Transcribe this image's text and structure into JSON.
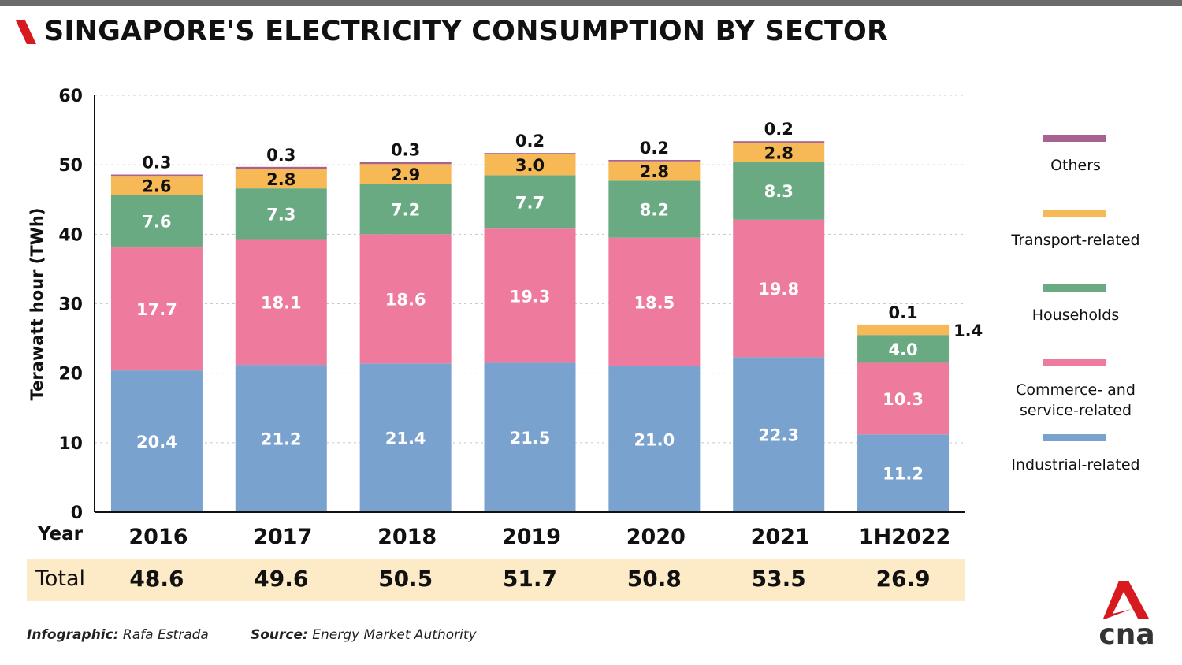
{
  "title": "SINGAPORE'S ELECTRICITY CONSUMPTION BY SECTOR",
  "colors": {
    "Industrial-related": "#7aa2cf",
    "Commerce- and service-related": "#ee7b9e",
    "Households": "#6aaa82",
    "Transport-related": "#f7b955",
    "Others": "#a8628f",
    "accent": "#d71920",
    "total_band": "#fdebc8"
  },
  "chart_data": {
    "type": "bar",
    "stacked": true,
    "ylabel": "Terawatt hour (TWh)",
    "xlabel": "Year",
    "ylim": [
      0,
      60
    ],
    "yticks": [
      "0",
      "10",
      "20",
      "30",
      "40",
      "50",
      "60"
    ],
    "grid": true,
    "legend_placement": "right",
    "categories": [
      "2016",
      "2017",
      "2018",
      "2019",
      "2020",
      "2021",
      "1H2022"
    ],
    "series": [
      {
        "name": "Industrial-related",
        "values": [
          20.4,
          21.2,
          21.4,
          21.5,
          21.0,
          22.3,
          11.2
        ]
      },
      {
        "name": "Commerce- and service-related",
        "values": [
          17.7,
          18.1,
          18.6,
          19.3,
          18.5,
          19.8,
          10.3
        ]
      },
      {
        "name": "Households",
        "values": [
          7.6,
          7.3,
          7.2,
          7.7,
          8.2,
          8.3,
          4.0
        ]
      },
      {
        "name": "Transport-related",
        "values": [
          2.6,
          2.8,
          2.9,
          3.0,
          2.8,
          2.8,
          1.4
        ]
      },
      {
        "name": "Others",
        "values": [
          0.3,
          0.3,
          0.3,
          0.2,
          0.2,
          0.2,
          0.1
        ]
      }
    ],
    "totals_label": "Total",
    "totals": [
      "48.6",
      "49.6",
      "50.5",
      "51.7",
      "50.8",
      "53.5",
      "26.9"
    ]
  },
  "legend": [
    {
      "label": "Others"
    },
    {
      "label": "Transport-related"
    },
    {
      "label": "Households"
    },
    {
      "label": "Commerce- and service-related"
    },
    {
      "label": "Industrial-related"
    }
  ],
  "footer": {
    "infographic_label": "Infographic:",
    "infographic_value": "Rafa Estrada",
    "source_label": "Source:",
    "source_value": "Energy Market Authority"
  },
  "logo_text": "cna"
}
